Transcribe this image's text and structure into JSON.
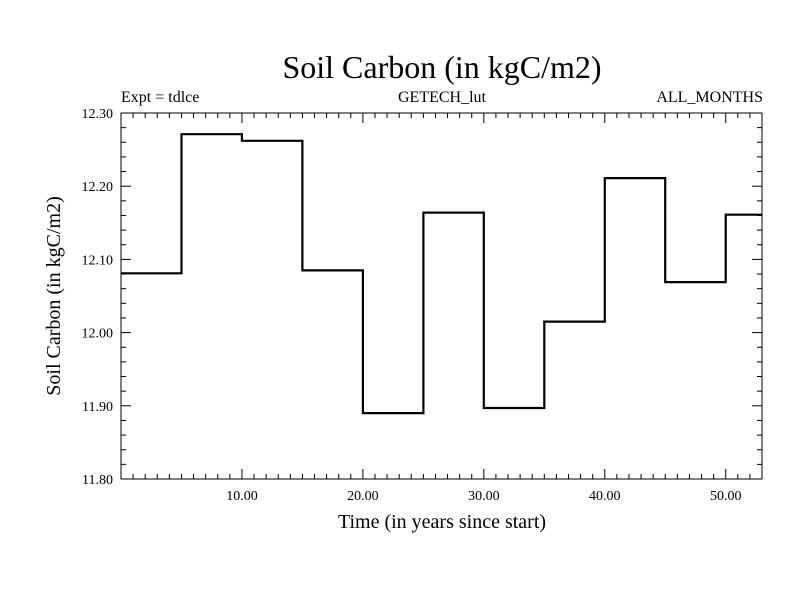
{
  "chart_data": {
    "type": "line",
    "style": "step",
    "title": "Soil Carbon (in kgC/m2)",
    "subtitle_left": "Expt = tdlce",
    "subtitle_center": "GETECH_lut",
    "subtitle_right": "ALL_MONTHS",
    "xlabel": "Time (in years since start)",
    "ylabel": "Soil Carbon (in kgC/m2)",
    "xlim": [
      0,
      53
    ],
    "ylim": [
      11.8,
      12.3
    ],
    "xticks": [
      10,
      20,
      30,
      40,
      50
    ],
    "xtick_labels": [
      "10.00",
      "20.00",
      "30.00",
      "40.00",
      "50.00"
    ],
    "yticks": [
      11.8,
      11.9,
      12.0,
      12.1,
      12.2,
      12.3
    ],
    "ytick_labels": [
      "11.80",
      "11.90",
      "12.00",
      "12.10",
      "12.20",
      "12.30"
    ],
    "series": [
      {
        "name": "Soil Carbon",
        "color": "#000000",
        "x": [
          0,
          5,
          5,
          10,
          10,
          15,
          15,
          20,
          20,
          25,
          25,
          30,
          30,
          35,
          35,
          40,
          40,
          45,
          45,
          50,
          50,
          53
        ],
        "y": [
          12.081,
          12.081,
          12.271,
          12.271,
          12.262,
          12.262,
          12.085,
          12.085,
          11.89,
          11.89,
          12.164,
          12.164,
          11.897,
          11.897,
          12.015,
          12.015,
          12.211,
          12.211,
          12.069,
          12.069,
          12.161,
          12.161
        ]
      }
    ]
  }
}
